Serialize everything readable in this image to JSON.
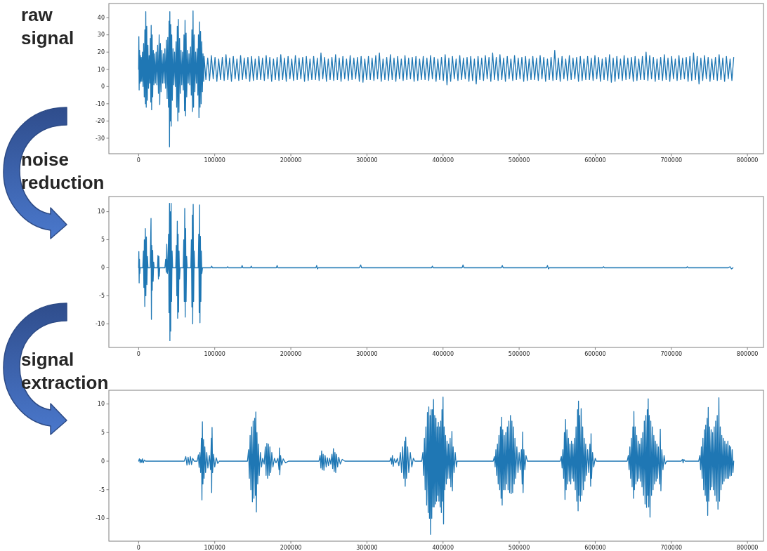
{
  "chart_data": [
    {
      "type": "line",
      "title": "raw signal",
      "color": "#1f77b4",
      "xlim": [
        -39100,
        821100
      ],
      "ylim": [
        -39,
        48.2
      ],
      "xticks": [
        0,
        100000,
        200000,
        300000,
        400000,
        500000,
        600000,
        700000,
        800000
      ],
      "yticks": [
        -30,
        -20,
        -10,
        0,
        10,
        20,
        30,
        40
      ],
      "x": [
        0,
        300,
        700,
        1200,
        1700,
        2200,
        2800,
        3500,
        4200,
        5000,
        5800,
        6600,
        7400,
        8200,
        8900,
        9400,
        10000,
        10700,
        11400,
        12200,
        13000,
        13800,
        14600,
        15400,
        16000,
        16500,
        17100,
        17800,
        18500,
        19300,
        20100,
        21000,
        22000,
        23000,
        24000,
        25000,
        26000,
        27000,
        27800,
        28600,
        29500,
        30500,
        31500,
        32500,
        33500,
        34500,
        35500,
        36500,
        37500,
        38300,
        39200,
        40000,
        40600,
        41000,
        41600,
        42200,
        42800,
        43500,
        44300,
        45200,
        46200,
        47200,
        48200,
        49200,
        50000,
        50800,
        51500,
        52200,
        53000,
        53800,
        54700,
        55700,
        56700,
        57700,
        58700,
        59600,
        60300,
        61000,
        61700,
        62400,
        63200,
        64200,
        65200,
        66200,
        67200,
        68200,
        69200,
        70000,
        70800,
        71500,
        72200,
        73000,
        73900,
        74900,
        75900,
        76900,
        77800,
        78600,
        79300,
        80000,
        80700,
        81400,
        82200,
        83000,
        83800,
        84600,
        85400,
        86000,
        88400,
        90800,
        93200,
        95600,
        98000,
        100400,
        102800,
        105200,
        107600,
        110000,
        112400,
        114800,
        117200,
        119600,
        122000,
        124400,
        126800,
        129200,
        131600,
        134000,
        136400,
        138800,
        141200,
        143600,
        146000,
        148400,
        150800,
        153200,
        155600,
        158000,
        160400,
        162800,
        165200,
        167600,
        170000,
        172400,
        174800,
        177200,
        179600,
        182000,
        184400,
        186800,
        189200,
        191600,
        194000,
        196400,
        198800,
        201200,
        203600,
        206000,
        208400,
        210800,
        213200,
        215600,
        218000,
        220400,
        222800,
        225200,
        227600,
        230000,
        232400,
        234800,
        237200,
        239600,
        242000,
        244400,
        246800,
        249200,
        251600,
        254000,
        256400,
        258800,
        261200,
        263600,
        266000,
        268400,
        270800,
        273200,
        275600,
        278000,
        280400,
        282800,
        285200,
        287600,
        290000,
        292400,
        294800,
        297200,
        299600,
        302000,
        304400,
        306800,
        309200,
        311600,
        314000,
        316400,
        318800,
        321200,
        323600,
        326000,
        328400,
        330800,
        333200,
        335600,
        338000,
        340400,
        342800,
        345200,
        347600,
        350000,
        352400,
        354800,
        357200,
        359600,
        362000,
        364400,
        366800,
        369200,
        371600,
        374000,
        376400,
        378800,
        381200,
        383600,
        386000,
        388400,
        390800,
        393200,
        395600,
        398000,
        400400,
        402800,
        405200,
        407600,
        410000,
        412400,
        414800,
        417200,
        419600,
        422000,
        424400,
        426800,
        429200,
        431600,
        434000,
        436400,
        438800,
        441200,
        443600,
        446000,
        448400,
        450800,
        453200,
        455600,
        458000,
        460400,
        462800,
        465200,
        467600,
        470000,
        472400,
        474800,
        477200,
        479600,
        482000,
        484400,
        486800,
        489200,
        491600,
        494000,
        496400,
        498800,
        501200,
        503600,
        506000,
        508400,
        510800,
        513200,
        515600,
        518000,
        520400,
        522800,
        525200,
        527600,
        530000,
        532400,
        534800,
        537200,
        539600,
        542000,
        544400,
        546800,
        549200,
        551600,
        554000,
        556400,
        558800,
        561200,
        563600,
        566000,
        568400,
        570800,
        573200,
        575600,
        578000,
        580400,
        582800,
        585200,
        587600,
        590000,
        592400,
        594800,
        597200,
        599600,
        602000,
        604400,
        606800,
        609200,
        611600,
        614000,
        616400,
        618800,
        621200,
        623600,
        626000,
        628400,
        630800,
        633200,
        635600,
        638000,
        640400,
        642800,
        645200,
        647600,
        650000,
        652400,
        654800,
        657200,
        659600,
        662000,
        664400,
        666800,
        669200,
        671600,
        674000,
        676400,
        678800,
        681200,
        683600,
        686000,
        688400,
        690800,
        693200,
        695600,
        698000,
        700400,
        702800,
        705200,
        707600,
        710000,
        712400,
        714800,
        717200,
        719600,
        722000,
        724400,
        726800,
        729200,
        731600,
        734000,
        736400,
        738800,
        741200,
        743600,
        746000,
        748400,
        750800,
        753200,
        755600,
        758000,
        760400,
        762800,
        765200,
        767600,
        770000,
        772400,
        774800,
        777200,
        779600,
        782000
      ],
      "values": [
        10,
        29,
        -2,
        21,
        2,
        18,
        3,
        17,
        3,
        20,
        0,
        25,
        -6,
        33,
        -10,
        43.5,
        -12,
        35,
        -8,
        24,
        -1,
        18,
        2,
        28,
        -9,
        35.5,
        -13.5,
        30,
        -6,
        21,
        1,
        19,
        2,
        20,
        1,
        24,
        -4,
        30,
        -10.5,
        25,
        -3,
        21,
        2,
        19,
        2,
        22,
        -1,
        27,
        -7,
        28.5,
        -12,
        38,
        -35,
        43.5,
        -20,
        36,
        -23,
        30,
        -8,
        22,
        1,
        20,
        0,
        26,
        -12,
        35,
        -20,
        39,
        -15,
        28,
        -4,
        21,
        1,
        20,
        -2,
        30,
        -14,
        38.5,
        -17,
        31,
        -6,
        21,
        2,
        19,
        1,
        23,
        -5,
        33,
        -14.5,
        44,
        -12,
        30,
        -3,
        20,
        2,
        22,
        -5,
        30,
        -18,
        37.5,
        -12,
        32,
        -10,
        26,
        -3,
        19,
        3,
        17.5,
        4,
        16.5,
        3.5,
        18,
        4.5,
        17,
        3,
        16,
        4,
        17,
        3.5,
        18.5,
        4,
        16.5,
        3,
        17.5,
        4.5,
        16,
        3.5,
        18,
        4,
        16.5,
        4.5,
        17,
        3,
        17.5,
        3.5,
        16,
        4,
        17.5,
        4,
        16.5,
        3.5,
        18,
        4.5,
        17,
        3,
        16,
        4,
        17,
        3.5,
        18.5,
        4,
        16.5,
        3,
        17.5,
        4.5,
        16,
        3.5,
        18,
        4,
        16.5,
        4.5,
        17,
        3,
        17.5,
        3.5,
        16,
        4,
        17.5,
        4,
        16.5,
        3.5,
        19.5,
        4.5,
        17,
        3,
        16,
        4,
        17,
        3.5,
        18.5,
        4,
        16.5,
        3,
        17.5,
        4.5,
        16,
        3.5,
        18,
        4,
        16.5,
        4.5,
        17,
        3,
        17.5,
        2.5,
        16,
        4,
        17.5,
        4,
        16.5,
        3.5,
        18,
        4.5,
        19.5,
        3,
        16,
        4,
        17,
        3.5,
        18.5,
        4,
        16.5,
        3,
        17.5,
        4.5,
        16,
        3.5,
        18,
        4,
        16.5,
        4.5,
        17,
        3,
        17.5,
        3.5,
        16,
        4,
        17.5,
        4,
        16.5,
        3.5,
        18,
        4.5,
        17,
        3,
        16,
        4,
        17,
        3.5,
        18.5,
        1,
        16.5,
        3,
        17.5,
        4.5,
        16,
        3.5,
        18,
        4,
        16.5,
        4.5,
        17,
        3,
        17.5,
        3.5,
        16,
        1.5,
        17.5,
        4,
        16.5,
        3.5,
        18,
        4.5,
        17,
        3,
        19.5,
        4,
        17,
        3.5,
        18.5,
        4,
        16.5,
        3,
        17.5,
        4.5,
        16,
        3.5,
        18,
        4,
        16.5,
        4.5,
        17,
        3,
        17.5,
        3.5,
        16,
        4,
        17.5,
        4,
        16.5,
        3.5,
        18,
        4.5,
        17,
        3,
        16,
        4,
        17,
        3.5,
        21,
        4,
        16.5,
        3,
        17.5,
        4.5,
        16,
        3.5,
        18,
        4,
        16.5,
        4.5,
        17,
        3,
        17.5,
        3.5,
        16,
        4,
        17.5,
        4,
        16.5,
        3.5,
        18,
        4.5,
        17,
        3,
        16,
        4,
        17,
        3.5,
        18.5,
        2.5,
        16.5,
        3,
        17.5,
        4.5,
        16,
        3.5,
        18,
        4,
        16.5,
        4.5,
        17,
        3,
        17.5,
        3.5,
        16,
        4,
        17.5,
        4,
        20,
        3.5,
        18,
        4.5,
        17,
        3,
        16,
        4,
        17,
        3.5,
        18.5,
        4,
        16.5,
        3,
        17.5,
        4.5,
        16,
        3.5,
        18,
        4,
        16.5,
        4.5,
        17,
        3,
        17.5,
        3.5,
        19.5,
        4,
        17.5,
        1.5,
        16.5,
        3.5,
        18,
        4.5,
        17,
        3,
        16,
        4,
        17,
        3.5,
        18.5,
        4,
        16.5,
        3,
        17.5,
        4.5,
        16,
        3.5,
        17
      ]
    },
    {
      "type": "line",
      "title": "noise reduction",
      "color": "#1f77b4",
      "xlim": [
        -39100,
        821100
      ],
      "ylim": [
        -14.2,
        12.7
      ],
      "xticks": [
        0,
        100000,
        200000,
        300000,
        400000,
        500000,
        600000,
        700000,
        800000
      ],
      "yticks": [
        -10,
        -5,
        0,
        5,
        10
      ],
      "x": [
        0,
        300,
        700,
        1100,
        1500,
        2000,
        5500,
        6300,
        6900,
        7500,
        8100,
        8800,
        9500,
        10200,
        10900,
        11600,
        12300,
        15200,
        15800,
        16300,
        16800,
        17300,
        17900,
        18500,
        19100,
        19800,
        20500,
        24800,
        25400,
        26000,
        26600,
        27200,
        27800,
        34500,
        35500,
        36300,
        37000,
        37800,
        38500,
        39300,
        39900,
        40600,
        41100,
        41700,
        42200,
        42700,
        43300,
        44000,
        44700,
        48800,
        49500,
        50200,
        50800,
        51300,
        51900,
        52500,
        53100,
        53800,
        54500,
        58600,
        59300,
        60000,
        60600,
        61200,
        61800,
        62400,
        63100,
        63800,
        68600,
        69300,
        70000,
        70600,
        71100,
        71700,
        72300,
        73000,
        73700,
        78300,
        79000,
        79600,
        80100,
        80600,
        81200,
        81800,
        82400,
        83100,
        84000,
        95000,
        96000,
        97000,
        116000,
        117000,
        118000,
        135000,
        136000,
        137000,
        147000,
        148000,
        149000,
        181000,
        182000,
        183000,
        233000,
        234000,
        235000,
        236000,
        290000,
        291800,
        293000,
        385000,
        386000,
        387000,
        425000,
        426300,
        427500,
        476500,
        477900,
        479000,
        536000,
        537300,
        538500,
        539500,
        610000,
        611000,
        612000,
        720000,
        721000,
        722000,
        775000,
        777000,
        779000,
        781000
      ],
      "values": [
        0,
        2.9,
        -2.7,
        1.5,
        -1,
        0,
        0,
        3,
        -3.5,
        5,
        -6.9,
        7,
        -5,
        5.5,
        -3,
        2,
        0,
        0,
        5,
        8.8,
        -9.2,
        4,
        -4,
        3.1,
        -2.4,
        1,
        0,
        0,
        2.2,
        -2,
        2,
        -1.5,
        0,
        0,
        1.5,
        -0.8,
        4.2,
        -1,
        0,
        6,
        -8,
        11.5,
        -13,
        10,
        -11.3,
        11.5,
        -6,
        3,
        0,
        0,
        4,
        -5,
        8.3,
        -9,
        6,
        -7.9,
        3,
        -2,
        0,
        0,
        5,
        -6,
        10.6,
        -8.8,
        7,
        -6,
        2,
        0,
        0,
        5,
        -7,
        9.4,
        -10,
        11.3,
        -6,
        3,
        0,
        0,
        6,
        -8,
        11.2,
        -9.8,
        5.6,
        -6,
        3,
        -1,
        0,
        0,
        0.3,
        0,
        0,
        0.2,
        0,
        0,
        0.4,
        0,
        0,
        0.3,
        0,
        0,
        0.4,
        0,
        0,
        0.4,
        -0.2,
        0,
        0,
        0.5,
        0,
        0,
        0.3,
        0,
        0,
        0.5,
        0,
        0,
        0.4,
        0,
        0,
        0.4,
        -0.2,
        0,
        0,
        0.2,
        0,
        0,
        0.2,
        0,
        0,
        0.2,
        -0.2,
        0
      ]
    },
    {
      "type": "line",
      "title": "signal extraction",
      "color": "#1f77b4",
      "xlim": [
        -39100,
        821100
      ],
      "ylim": [
        -14,
        12.4
      ],
      "xticks": [
        0,
        100000,
        200000,
        300000,
        400000,
        500000,
        600000,
        700000,
        800000
      ],
      "yticks": [
        -10,
        -5,
        0,
        5,
        10
      ],
      "x": [
        0,
        1000,
        2000,
        3000,
        4000,
        5000,
        6000,
        7500,
        9000,
        60000,
        62000,
        63500,
        65000,
        66500,
        68000,
        69500,
        71000,
        73000,
        77000,
        78500,
        79500,
        80500,
        81500,
        82500,
        83200,
        83800,
        84500,
        85300,
        86000,
        87000,
        88000,
        89500,
        91000,
        93000,
        94500,
        95500,
        96000,
        96500,
        97200,
        98500,
        100000,
        102000,
        104000,
        106000,
        143000,
        144500,
        145500,
        146500,
        147500,
        148500,
        149500,
        150500,
        151500,
        152500,
        153500,
        154000,
        154700,
        155500,
        156500,
        157500,
        158500,
        160000,
        161500,
        163000,
        165000,
        166500,
        167500,
        168500,
        169500,
        170500,
        171500,
        172500,
        173500,
        175000,
        176500,
        178500,
        180500,
        183000,
        184500,
        185000,
        185500,
        186500,
        188000,
        190000,
        193000,
        197000,
        237000,
        238500,
        239500,
        240500,
        241500,
        242500,
        243500,
        245000,
        246500,
        248000,
        249500,
        251000,
        252500,
        254000,
        255000,
        256000,
        257000,
        258000,
        259000,
        260000,
        261500,
        263000,
        265000,
        267500,
        271000,
        330000,
        331500,
        332500,
        333500,
        334500,
        336000,
        338000,
        340000,
        342000,
        344000,
        345500,
        347000,
        348500,
        349500,
        350300,
        351000,
        352000,
        353500,
        355000,
        357000,
        359000,
        361000,
        363000,
        372000,
        373500,
        374500,
        375500,
        376500,
        377500,
        378500,
        379500,
        380500,
        381300,
        382200,
        383000,
        383600,
        384400,
        385200,
        386000,
        386800,
        387500,
        388300,
        389100,
        389900,
        390700,
        391500,
        392300,
        393100,
        393800,
        394600,
        395400,
        396200,
        397000,
        397800,
        398600,
        399300,
        400000,
        400700,
        401500,
        402400,
        403300,
        404300,
        405300,
        406300,
        407300,
        408300,
        409300,
        410300,
        411700,
        412300,
        413300,
        414500,
        416000,
        417500,
        418500,
        466000,
        467500,
        468500,
        469500,
        470500,
        471500,
        472500,
        473500,
        474500,
        475500,
        476300,
        477000,
        477700,
        478500,
        479500,
        480500,
        481500,
        482500,
        483500,
        484500,
        485500,
        486500,
        487500,
        488600,
        489500,
        490500,
        491500,
        492500,
        493500,
        494500,
        495500,
        497000,
        498500,
        500000,
        501500,
        503000,
        504000,
        504600,
        505200,
        506200,
        507500,
        509000,
        510800,
        554000,
        555500,
        556500,
        557500,
        558500,
        559500,
        560300,
        561000,
        561800,
        562800,
        563800,
        564800,
        565800,
        566800,
        567800,
        568800,
        569800,
        570800,
        571800,
        572800,
        573800,
        574800,
        575800,
        576800,
        577500,
        578000,
        578700,
        579500,
        580500,
        581500,
        582500,
        583500,
        584500,
        585500,
        586500,
        587500,
        588500,
        590000,
        591500,
        593000,
        594000,
        594500,
        595200,
        596500,
        598000,
        600000,
        601500,
        642000,
        643500,
        644500,
        645500,
        646500,
        647500,
        648500,
        649500,
        650300,
        650800,
        651500,
        652500,
        653500,
        654500,
        655500,
        656500,
        657500,
        658500,
        659500,
        660500,
        661500,
        662500,
        663500,
        664500,
        665500,
        666500,
        667500,
        668400,
        669000,
        669600,
        670300,
        671000,
        672000,
        673000,
        674000,
        675000,
        676000,
        677000,
        678000,
        679000,
        680000,
        681000,
        682000,
        683000,
        684500,
        685500,
        686300,
        687500,
        689000,
        690500,
        692000,
        693900,
        713000,
        714500,
        715500,
        716500,
        718000,
        736000,
        737500,
        738500,
        739500,
        740500,
        741500,
        742500,
        743500,
        744500,
        745200,
        746000,
        747000,
        747800,
        748500,
        749300,
        750300,
        751300,
        752300,
        753300,
        754300,
        755300,
        756300,
        757300,
        758300,
        759300,
        760300,
        761300,
        762500,
        763300,
        764300,
        765300,
        766300,
        767300,
        768300,
        769300,
        770300,
        771300,
        772300,
        773300,
        774300,
        775300,
        776300,
        777000,
        778000,
        779000,
        780000,
        781000,
        782000
      ],
      "values": [
        0,
        0.4,
        -0.3,
        0.3,
        -0.2,
        0.4,
        -0.3,
        0.2,
        0,
        0,
        0.8,
        -0.7,
        0.7,
        -0.6,
        0.8,
        -0.6,
        0.5,
        0,
        0,
        1.1,
        -1.1,
        1.5,
        -2,
        4,
        -6.8,
        6.9,
        -4,
        3.8,
        -3,
        2.5,
        -2,
        1.5,
        -1.2,
        1,
        -1.5,
        4,
        -5.5,
        5.9,
        -2,
        1.2,
        -1,
        0.6,
        -0.4,
        0,
        0,
        2,
        -3,
        4.5,
        -5,
        6,
        -7.1,
        7,
        -6.5,
        7.5,
        -6,
        8.6,
        -8.9,
        5,
        -4,
        3,
        -2.5,
        1.5,
        -1,
        0.5,
        -0.5,
        2.5,
        -2.5,
        3.1,
        -3,
        3,
        -2.5,
        2.5,
        -2,
        1.5,
        -1,
        0.5,
        -0.3,
        0.5,
        -1.5,
        2.3,
        -2.4,
        1,
        -0.7,
        0.4,
        -0.3,
        0,
        0,
        1,
        -1.2,
        1.8,
        -1.5,
        1.2,
        -1.6,
        1,
        -1,
        0.6,
        -0.8,
        0.5,
        -0.5,
        1.2,
        -1.3,
        2.2,
        -1.8,
        1.5,
        -2,
        1.2,
        -1,
        0.7,
        -0.5,
        0.3,
        0,
        0,
        0.6,
        -0.5,
        1,
        -0.9,
        0.4,
        -0.3,
        0.5,
        -0.8,
        1.5,
        -2,
        2.5,
        -3,
        3.5,
        -4.4,
        4.2,
        -3,
        2.5,
        -2,
        1.5,
        -1,
        0.5,
        0,
        0,
        1.5,
        -2.5,
        4,
        -5,
        6,
        -7.7,
        8.5,
        -9,
        9.5,
        -10,
        8,
        -12.8,
        9,
        -10,
        9,
        -8,
        10.8,
        -8,
        8,
        -7.5,
        7.5,
        -7,
        6,
        -6,
        6.8,
        -7,
        6,
        -8,
        7,
        -9,
        9,
        -7,
        11.2,
        -11,
        6,
        -5,
        4.5,
        -4,
        3.5,
        -3,
        3,
        -3,
        4,
        -4.5,
        5.2,
        -5.2,
        2.5,
        -2,
        1.5,
        -1,
        0,
        0,
        0.8,
        -1,
        2,
        -2.5,
        3,
        -4,
        4.5,
        -5,
        6,
        -6.5,
        7.7,
        -7.7,
        5.5,
        -5,
        4.5,
        -5,
        5,
        -4,
        6,
        -5,
        7,
        -5.5,
        8,
        -5.7,
        7,
        -5.5,
        6,
        -4,
        4,
        -3,
        2.5,
        -2,
        1.5,
        -1.5,
        2,
        -4,
        5.1,
        -5.5,
        2,
        -1.5,
        1,
        0,
        0,
        0.8,
        -1.2,
        2,
        -3,
        5,
        -6.7,
        7.3,
        -5,
        5.5,
        -4,
        4,
        -3.5,
        3,
        -4,
        3.5,
        -3,
        3,
        -3.5,
        4,
        -5,
        6,
        -7,
        9,
        -8.7,
        10.5,
        -6,
        8,
        -7,
        9.2,
        -6,
        6,
        -5,
        4,
        -3.5,
        3,
        -2.5,
        2,
        -2,
        3,
        -4.4,
        4.8,
        -3,
        1.5,
        -1,
        0.5,
        0,
        0,
        1,
        -1.5,
        2.5,
        -3,
        4,
        -4.5,
        6,
        -6.5,
        8.7,
        -5,
        6,
        -4,
        4.5,
        -3.5,
        3.5,
        -3,
        3,
        -3.5,
        4,
        -4.5,
        5,
        -6,
        7,
        -7.5,
        8,
        -8.1,
        9,
        -6,
        10.9,
        -8,
        8,
        -9.8,
        7,
        -6,
        6,
        -5,
        4.5,
        -4,
        3.5,
        -3.5,
        3,
        -3,
        2.5,
        -4,
        5.6,
        -5.2,
        2,
        -1.5,
        1,
        -0.5,
        0,
        0,
        0.3,
        -0.3,
        0.3,
        0,
        0,
        1,
        -1.5,
        2.5,
        -3,
        4,
        -5,
        5.5,
        -6,
        6.3,
        -7,
        7.5,
        -9.5,
        9.4,
        -7,
        6,
        -5,
        5.5,
        -4.5,
        5,
        -5,
        6,
        -6,
        7,
        -7,
        8,
        -8.4,
        11.1,
        -7,
        6,
        -5,
        4.5,
        -4,
        4,
        -3.5,
        3.5,
        -3,
        3,
        -3,
        3.5,
        -3,
        2.7,
        -2.6,
        2.5,
        -2.5,
        2,
        -2,
        0
      ]
    }
  ]
}
